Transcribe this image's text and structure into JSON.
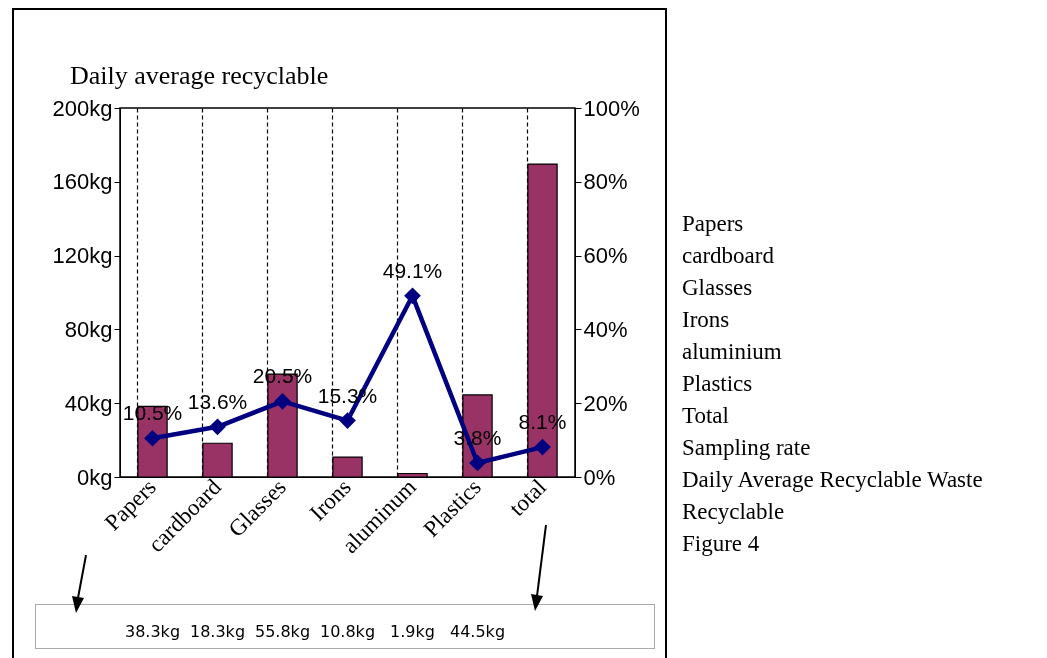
{
  "chart_data": {
    "type": "bar",
    "title": "Daily average recyclable",
    "categories": [
      "Papers",
      "cardboard",
      "Glasses",
      "Irons",
      "aluminum",
      "Plastics",
      "total"
    ],
    "series": [
      {
        "color": "#993366",
        "values": [
          38.3,
          18.3,
          55.8,
          10.8,
          1.9,
          44.5,
          169.6
        ],
        "value_labels": [
          "38.3kg",
          "18.3kg",
          "55.8kg",
          "10.8kg",
          "1.9kg",
          "44.5kg",
          null
        ]
      },
      {
        "type": "line",
        "axis": "y2",
        "color": "#000080",
        "values": [
          10.5,
          13.6,
          20.5,
          15.3,
          49.1,
          3.8,
          8.1
        ],
        "value_labels": [
          "10.5%",
          "13.6%",
          "20.5%",
          "15.3%",
          "49.1%",
          "3.8%",
          "8.1%"
        ]
      }
    ],
    "ylim": [
      0,
      200
    ],
    "yticks": [
      {
        "value": 0,
        "label": "0kg"
      },
      {
        "value": 40,
        "label": "40kg"
      },
      {
        "value": 80,
        "label": "80kg"
      },
      {
        "value": 120,
        "label": "120kg"
      },
      {
        "value": 160,
        "label": "160kg"
      },
      {
        "value": 200,
        "label": "200kg"
      }
    ],
    "y2lim": [
      0,
      100
    ],
    "y2ticks": [
      {
        "value": 0,
        "label": "0%"
      },
      {
        "value": 20,
        "label": "20%"
      },
      {
        "value": 40,
        "label": "40%"
      },
      {
        "value": 60,
        "label": "60%"
      },
      {
        "value": 80,
        "label": "80%"
      },
      {
        "value": 100,
        "label": "100%"
      }
    ],
    "grid": "x",
    "marker": "diamond",
    "annotations": [
      "Papers",
      "cardboard",
      "Glasses",
      "Irons",
      "aluminium",
      "Plastics",
      "Total",
      "Sampling rate",
      "Daily Average Recyclable Waste",
      "Recyclable",
      "Figure 4"
    ]
  }
}
